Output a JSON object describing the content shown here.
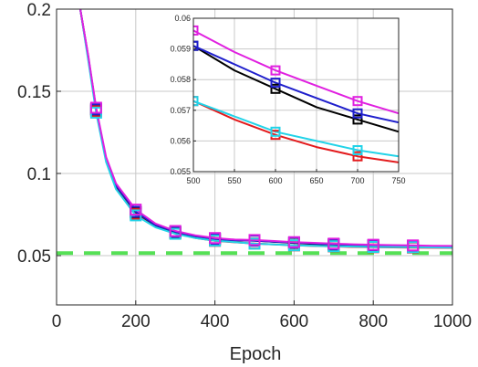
{
  "chart_data": [
    {
      "type": "line",
      "title": "",
      "xlabel": "Epoch",
      "ylabel": "",
      "xlim": [
        0,
        1000
      ],
      "ylim": [
        0.02,
        0.2
      ],
      "grid": true,
      "x_ticks": [
        0,
        200,
        400,
        600,
        800,
        1000
      ],
      "x_tick_labels": [
        "0",
        "200",
        "400",
        "600",
        "800",
        "1000"
      ],
      "y_ticks": [
        0.05,
        0.1,
        0.15,
        0.2
      ],
      "y_tick_labels": [
        "0.05",
        "0.1",
        "0.15",
        "0.2"
      ],
      "x": [
        60,
        80,
        100,
        125,
        150,
        200,
        250,
        300,
        350,
        400,
        450,
        500,
        550,
        600,
        650,
        700,
        750,
        800,
        850,
        900,
        950,
        1000
      ],
      "series": [
        {
          "color": "#e31a1c",
          "marker_color": "#e31a1c",
          "values": [
            0.2,
            0.17,
            0.138,
            0.108,
            0.092,
            0.0755,
            0.0675,
            0.0635,
            0.0608,
            0.059,
            0.0581,
            0.0574,
            0.0568,
            0.0562,
            0.0559,
            0.0556,
            0.0553,
            0.0551,
            0.055,
            0.0549,
            0.0548,
            0.0547
          ]
        },
        {
          "color": "#000000",
          "marker_color": "#000000",
          "values": [
            0.2,
            0.171,
            0.139,
            0.109,
            0.0925,
            0.0765,
            0.0683,
            0.0643,
            0.0617,
            0.0601,
            0.0593,
            0.0591,
            0.0584,
            0.0577,
            0.0571,
            0.0567,
            0.0563,
            0.056,
            0.0558,
            0.0556,
            0.0555,
            0.0554
          ]
        },
        {
          "color": "#1f1fcc",
          "marker_color": "#1f1fcc",
          "values": [
            0.2,
            0.171,
            0.139,
            0.109,
            0.0927,
            0.0767,
            0.0685,
            0.0645,
            0.0619,
            0.0602,
            0.0594,
            0.0591,
            0.0585,
            0.0579,
            0.0574,
            0.0569,
            0.0566,
            0.0563,
            0.0561,
            0.0559,
            0.0558,
            0.0557
          ]
        },
        {
          "color": "#22d3e8",
          "marker_color": "#22d3e8",
          "values": [
            0.2,
            0.169,
            0.137,
            0.107,
            0.0905,
            0.0745,
            0.0672,
            0.0633,
            0.0607,
            0.0591,
            0.0582,
            0.0573,
            0.0568,
            0.0563,
            0.056,
            0.0557,
            0.0555,
            0.0553,
            0.0552,
            0.0551,
            0.055,
            0.0549
          ]
        },
        {
          "color": "#e020e0",
          "marker_color": "#e020e0",
          "values": [
            0.2,
            0.172,
            0.14,
            0.11,
            0.094,
            0.078,
            0.0695,
            0.065,
            0.0624,
            0.0607,
            0.0598,
            0.0595,
            0.0589,
            0.0582,
            0.0578,
            0.0573,
            0.0569,
            0.0566,
            0.0564,
            0.0562,
            0.056,
            0.0559
          ]
        }
      ],
      "markers": {
        "shape": "square",
        "x": [
          100,
          200,
          300,
          400,
          500,
          600,
          700,
          800,
          900
        ]
      },
      "reference_line": {
        "value": 0.0515,
        "color": "#55e055",
        "style": "dashed"
      }
    },
    {
      "type": "line",
      "title": "",
      "xlabel": "",
      "ylabel": "",
      "xlim": [
        500,
        750
      ],
      "ylim": [
        0.055,
        0.06
      ],
      "grid": true,
      "x_ticks": [
        500,
        550,
        600,
        650,
        700,
        750
      ],
      "x_tick_labels": [
        "500",
        "550",
        "600",
        "650",
        "700",
        "750"
      ],
      "y_ticks": [
        0.055,
        0.056,
        0.057,
        0.058,
        0.059,
        0.06
      ],
      "y_tick_labels": [
        "0.055",
        "0.056",
        "0.057",
        "0.058",
        "0.059",
        "0.06"
      ],
      "x": [
        500,
        550,
        600,
        650,
        700,
        750
      ],
      "series": [
        {
          "color": "#e31a1c",
          "values": [
            0.0573,
            0.0567,
            0.0562,
            0.0558,
            0.0555,
            0.0553
          ]
        },
        {
          "color": "#000000",
          "values": [
            0.0591,
            0.0583,
            0.0577,
            0.0571,
            0.0567,
            0.0563
          ]
        },
        {
          "color": "#1f1fcc",
          "values": [
            0.0591,
            0.0585,
            0.0579,
            0.0574,
            0.0569,
            0.0566
          ]
        },
        {
          "color": "#22d3e8",
          "values": [
            0.0573,
            0.0568,
            0.0563,
            0.056,
            0.0557,
            0.0555
          ]
        },
        {
          "color": "#e020e0",
          "values": [
            0.0596,
            0.0589,
            0.0583,
            0.0578,
            0.0573,
            0.0569
          ]
        }
      ],
      "markers": {
        "shape": "square",
        "x": [
          500,
          600,
          700
        ]
      }
    }
  ]
}
